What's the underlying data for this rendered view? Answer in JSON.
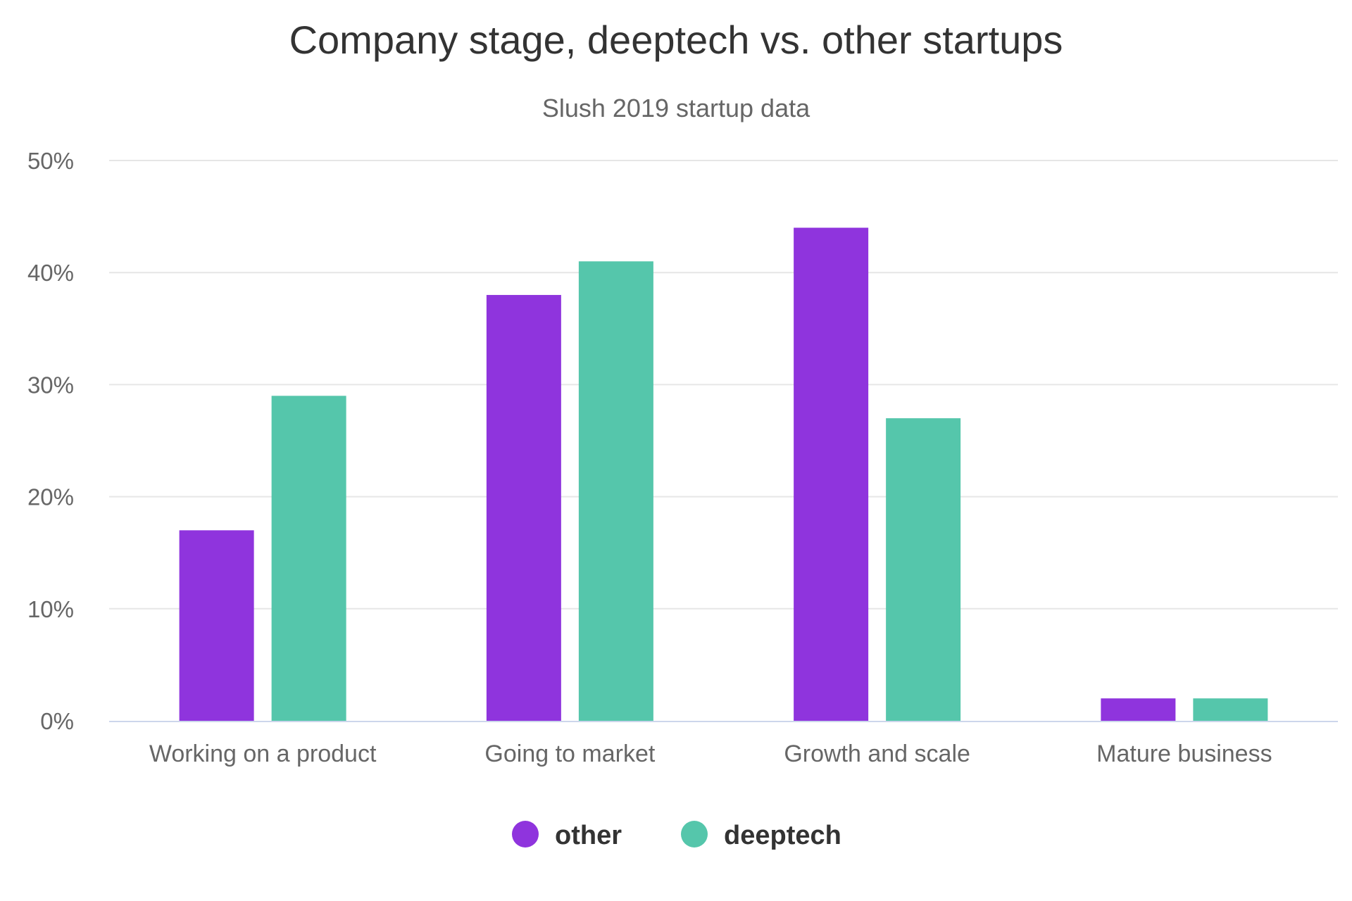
{
  "chart_data": {
    "type": "bar",
    "title": "Company stage, deeptech vs. other startups",
    "subtitle": "Slush 2019 startup data",
    "categories": [
      "Working on a product",
      "Going to market",
      "Growth and scale",
      "Mature business"
    ],
    "series": [
      {
        "name": "other",
        "color": "#8f34dd",
        "values": [
          17,
          38,
          44,
          2
        ]
      },
      {
        "name": "deeptech",
        "color": "#55c6ab",
        "values": [
          29,
          41,
          27,
          2
        ]
      }
    ],
    "ylim": [
      0,
      50
    ],
    "yticks": [
      0,
      10,
      20,
      30,
      40,
      50
    ],
    "ytick_labels": [
      "0%",
      "10%",
      "20%",
      "30%",
      "40%",
      "50%"
    ],
    "grid": true,
    "legend": "bottom-center"
  }
}
